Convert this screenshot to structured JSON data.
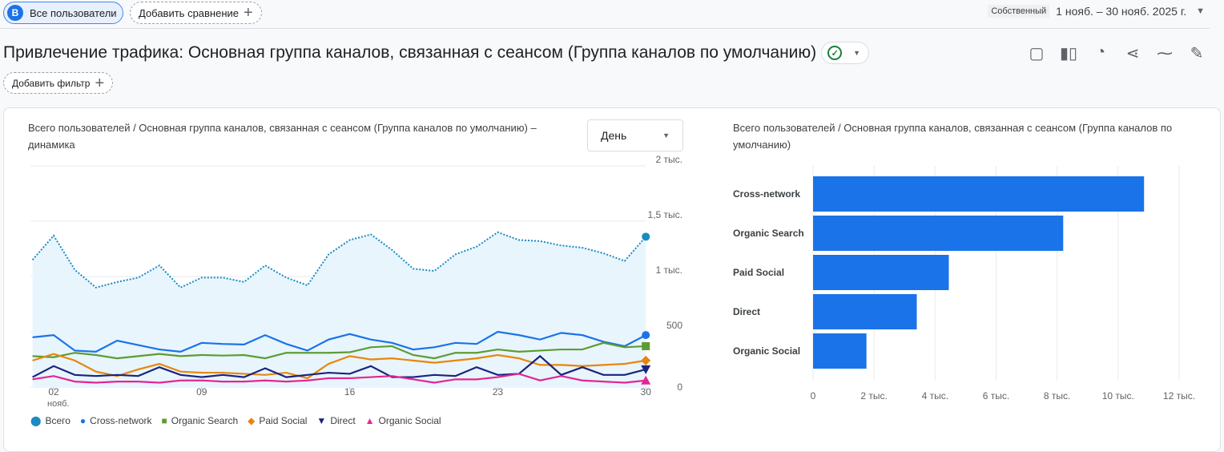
{
  "topbar": {
    "segment_badge": "B",
    "segment_label": "Все пользователи",
    "add_comparison": "Добавить сравнение",
    "date_tag": "Собственный",
    "date_range": "1 нояб. – 30 нояб. 2025 г."
  },
  "header": {
    "title": "Привлечение трафика: Основная группа каналов, связанная с сеансом (Группа каналов по умолчанию)",
    "add_filter": "Добавить фильтр"
  },
  "line_card": {
    "title": "Всего пользователей / Основная группа каналов, связанная с сеансом (Группа каналов по умолчанию) – динамика",
    "granularity": "День"
  },
  "bar_card": {
    "title": "Всего пользователей / Основная группа каналов, связанная с сеансом (Группа каналов по умолчанию)"
  },
  "chart_data": [
    {
      "type": "line",
      "x_ticks": [
        "02",
        "09",
        "16",
        "23",
        "30"
      ],
      "x_tick_sub": "нояб.",
      "days": [
        1,
        2,
        3,
        4,
        5,
        6,
        7,
        8,
        9,
        10,
        11,
        12,
        13,
        14,
        15,
        16,
        17,
        18,
        19,
        20,
        21,
        22,
        23,
        24,
        25,
        26,
        27,
        28,
        29,
        30
      ],
      "y_ticks": [
        "0",
        "500",
        "1 тыс.",
        "1,5 тыс.",
        "2 тыс."
      ],
      "ylim": [
        0,
        2000
      ],
      "series": [
        {
          "name": "Всего",
          "color": "#1a8bc2",
          "values": [
            1150,
            1370,
            1060,
            900,
            950,
            990,
            1100,
            900,
            990,
            990,
            950,
            1100,
            990,
            920,
            1200,
            1330,
            1380,
            1240,
            1070,
            1050,
            1200,
            1270,
            1400,
            1330,
            1320,
            1280,
            1260,
            1210,
            1140,
            1360
          ]
        },
        {
          "name": "Cross-network",
          "color": "#1a73e8",
          "values": [
            450,
            470,
            330,
            320,
            420,
            380,
            340,
            320,
            400,
            390,
            385,
            470,
            390,
            330,
            430,
            480,
            430,
            400,
            340,
            360,
            400,
            390,
            500,
            470,
            430,
            490,
            470,
            410,
            370,
            470
          ]
        },
        {
          "name": "Organic Search",
          "color": "#5e9c32",
          "values": [
            280,
            270,
            310,
            290,
            260,
            280,
            300,
            280,
            290,
            285,
            290,
            260,
            310,
            310,
            310,
            315,
            360,
            370,
            290,
            260,
            310,
            310,
            340,
            320,
            330,
            340,
            340,
            400,
            360,
            370
          ]
        },
        {
          "name": "Paid Social",
          "color": "#e8860c",
          "values": [
            240,
            300,
            240,
            140,
            100,
            160,
            210,
            140,
            130,
            130,
            120,
            110,
            130,
            80,
            210,
            280,
            250,
            260,
            240,
            220,
            240,
            260,
            290,
            260,
            200,
            200,
            190,
            200,
            210,
            240
          ]
        },
        {
          "name": "Direct",
          "color": "#1a237e",
          "values": [
            90,
            190,
            110,
            100,
            110,
            100,
            180,
            110,
            90,
            110,
            90,
            170,
            90,
            110,
            130,
            120,
            190,
            90,
            90,
            110,
            100,
            180,
            110,
            120,
            280,
            110,
            180,
            110,
            110,
            160
          ]
        },
        {
          "name": "Organic Social",
          "color": "#e52592",
          "values": [
            70,
            100,
            50,
            40,
            50,
            50,
            40,
            60,
            60,
            50,
            50,
            60,
            50,
            60,
            80,
            80,
            90,
            100,
            70,
            40,
            70,
            70,
            90,
            120,
            60,
            100,
            60,
            50,
            40,
            60
          ]
        }
      ]
    },
    {
      "type": "bar",
      "orientation": "horizontal",
      "categories": [
        "Cross-network",
        "Organic Search",
        "Paid Social",
        "Direct",
        "Organic Social"
      ],
      "values": [
        10850,
        8200,
        4450,
        3400,
        1750
      ],
      "x_ticks": [
        "0",
        "2 тыс.",
        "4 тыс.",
        "6 тыс.",
        "8 тыс.",
        "10 тыс.",
        "12 тыс."
      ],
      "xlim": [
        0,
        12000
      ],
      "color": "#1a73e8"
    }
  ]
}
